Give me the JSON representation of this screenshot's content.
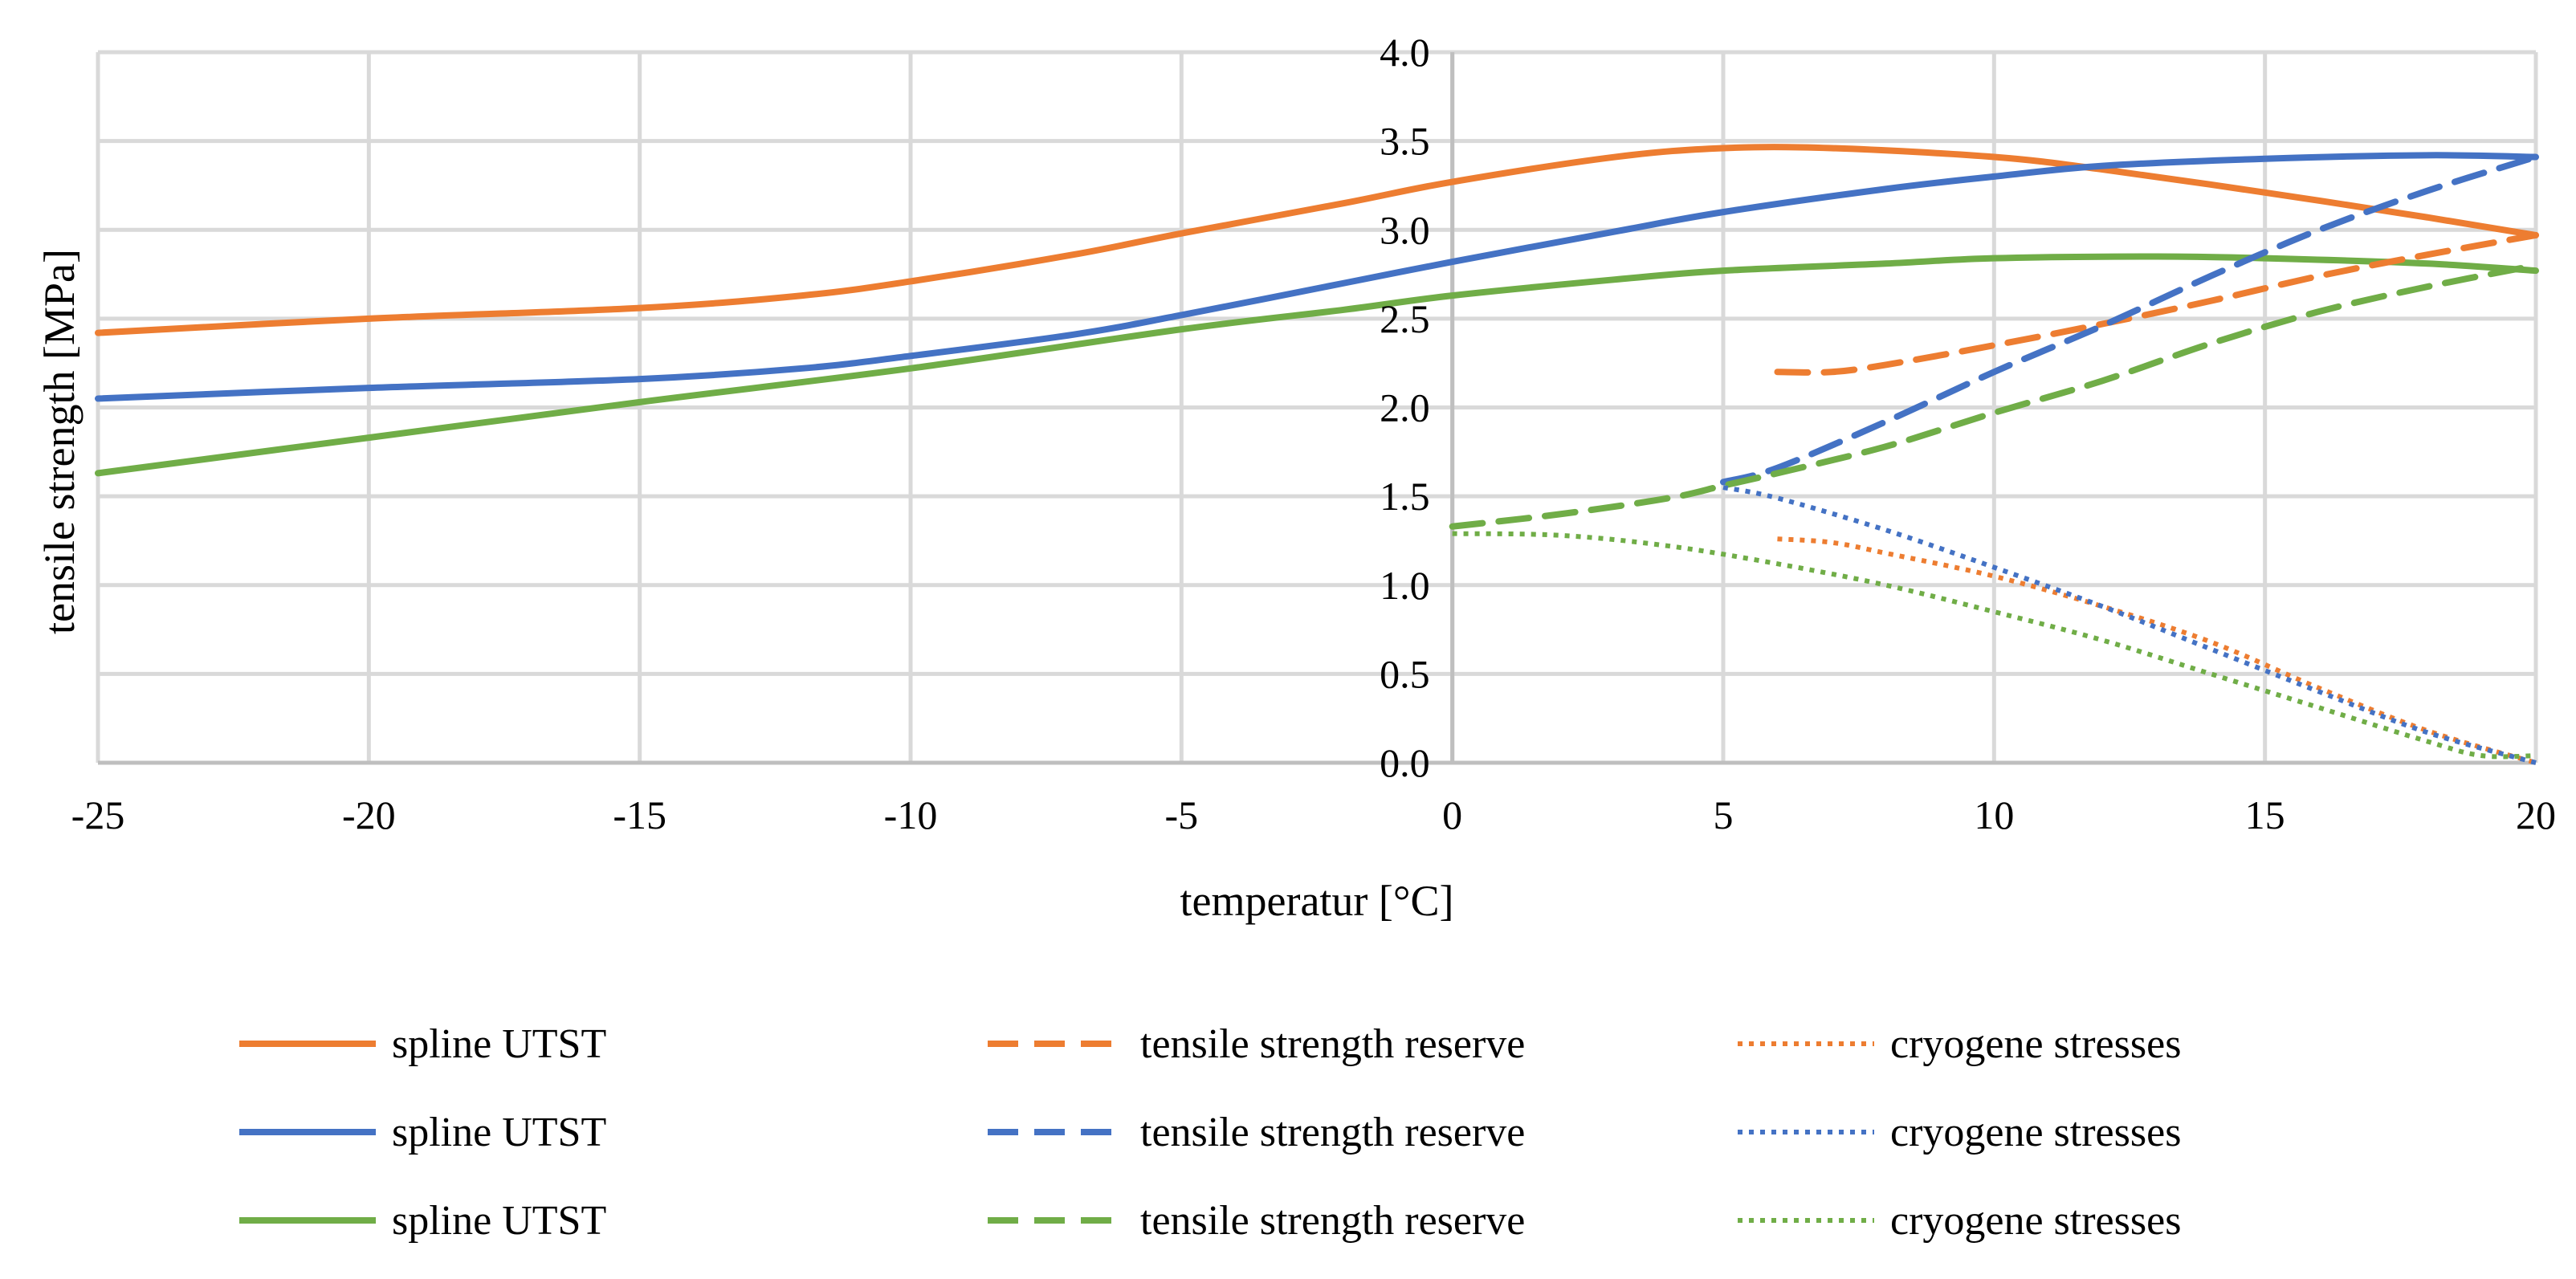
{
  "chart_data": {
    "type": "line",
    "title": "",
    "xlabel": "temperatur [°C]",
    "ylabel": "tensile strength [MPa]",
    "xlim": [
      -25,
      20
    ],
    "ylim": [
      0,
      4
    ],
    "x_ticks": [
      -25,
      -20,
      -15,
      -10,
      -5,
      0,
      5,
      10,
      15,
      20
    ],
    "x_tick_labels": [
      "-25",
      "-20",
      "-15",
      "-10",
      "-5",
      "0",
      "5",
      "10",
      "15",
      "20"
    ],
    "y_ticks": [
      0,
      0.5,
      1,
      1.5,
      2,
      2.5,
      3,
      3.5,
      4
    ],
    "y_tick_labels": [
      "0.0",
      "0.5",
      "1.0",
      "1.5",
      "2.0",
      "2.5",
      "3.0",
      "3.5",
      "4.0"
    ],
    "grid": true,
    "legend_position": "bottom",
    "series": [
      {
        "name": "spline UTST",
        "color": "#ed7d31",
        "style": "solid",
        "x": [
          -25,
          -20,
          -15,
          -12,
          -10,
          -7,
          -5,
          -2,
          0,
          3,
          5,
          7,
          10,
          12,
          15,
          18,
          20
        ],
        "y": [
          2.42,
          2.5,
          2.56,
          2.63,
          2.71,
          2.86,
          2.98,
          3.15,
          3.27,
          3.41,
          3.46,
          3.46,
          3.41,
          3.34,
          3.21,
          3.07,
          2.97
        ]
      },
      {
        "name": "spline UTST",
        "color": "#4472c4",
        "style": "solid",
        "x": [
          -25,
          -20,
          -15,
          -12,
          -10,
          -7,
          -5,
          -2,
          0,
          3,
          5,
          8,
          10,
          12,
          15,
          18,
          20
        ],
        "y": [
          2.05,
          2.11,
          2.16,
          2.22,
          2.29,
          2.41,
          2.52,
          2.7,
          2.82,
          2.99,
          3.1,
          3.23,
          3.3,
          3.36,
          3.4,
          3.42,
          3.41
        ]
      },
      {
        "name": "spline UTST",
        "color": "#70ad47",
        "style": "solid",
        "x": [
          -25,
          -20,
          -15,
          -10,
          -5,
          -2,
          0,
          3,
          5,
          8,
          10,
          13,
          15,
          18,
          20
        ],
        "y": [
          1.63,
          1.83,
          2.03,
          2.22,
          2.44,
          2.55,
          2.63,
          2.72,
          2.77,
          2.81,
          2.84,
          2.85,
          2.84,
          2.81,
          2.77
        ]
      },
      {
        "name": "tensile strength reserve",
        "color": "#ed7d31",
        "style": "dashed",
        "x": [
          6,
          7,
          8,
          10,
          12,
          14,
          16,
          18,
          20
        ],
        "y": [
          2.2,
          2.2,
          2.24,
          2.35,
          2.47,
          2.6,
          2.74,
          2.86,
          2.97
        ]
      },
      {
        "name": "tensile strength reserve",
        "color": "#4472c4",
        "style": "dashed",
        "x": [
          5,
          6,
          8,
          10,
          12,
          14,
          16,
          18,
          20
        ],
        "y": [
          1.58,
          1.66,
          1.92,
          2.2,
          2.46,
          2.74,
          3.0,
          3.22,
          3.41
        ]
      },
      {
        "name": "tensile strength reserve",
        "color": "#70ad47",
        "style": "dashed",
        "x": [
          0,
          2,
          4,
          5,
          6,
          8,
          10,
          12,
          14,
          16,
          18,
          20
        ],
        "y": [
          1.33,
          1.4,
          1.49,
          1.56,
          1.63,
          1.78,
          1.97,
          2.15,
          2.36,
          2.54,
          2.68,
          2.8
        ]
      },
      {
        "name": "cryogene stresses",
        "color": "#ed7d31",
        "style": "dotted",
        "x": [
          6,
          7,
          8,
          10,
          12,
          14,
          16,
          18,
          20
        ],
        "y": [
          1.26,
          1.24,
          1.18,
          1.05,
          0.88,
          0.68,
          0.42,
          0.18,
          0.0
        ]
      },
      {
        "name": "cryogene stresses",
        "color": "#4472c4",
        "style": "dotted",
        "x": [
          5,
          6,
          8,
          10,
          12,
          14,
          16,
          18,
          20
        ],
        "y": [
          1.55,
          1.49,
          1.31,
          1.1,
          0.88,
          0.64,
          0.4,
          0.17,
          0.0
        ]
      },
      {
        "name": "cryogene stresses",
        "color": "#70ad47",
        "style": "dotted",
        "x": [
          0,
          2,
          4,
          6,
          8,
          10,
          12,
          14,
          16,
          18,
          19,
          20
        ],
        "y": [
          1.29,
          1.28,
          1.22,
          1.12,
          1.0,
          0.85,
          0.69,
          0.5,
          0.31,
          0.12,
          0.04,
          0.04
        ]
      }
    ]
  }
}
